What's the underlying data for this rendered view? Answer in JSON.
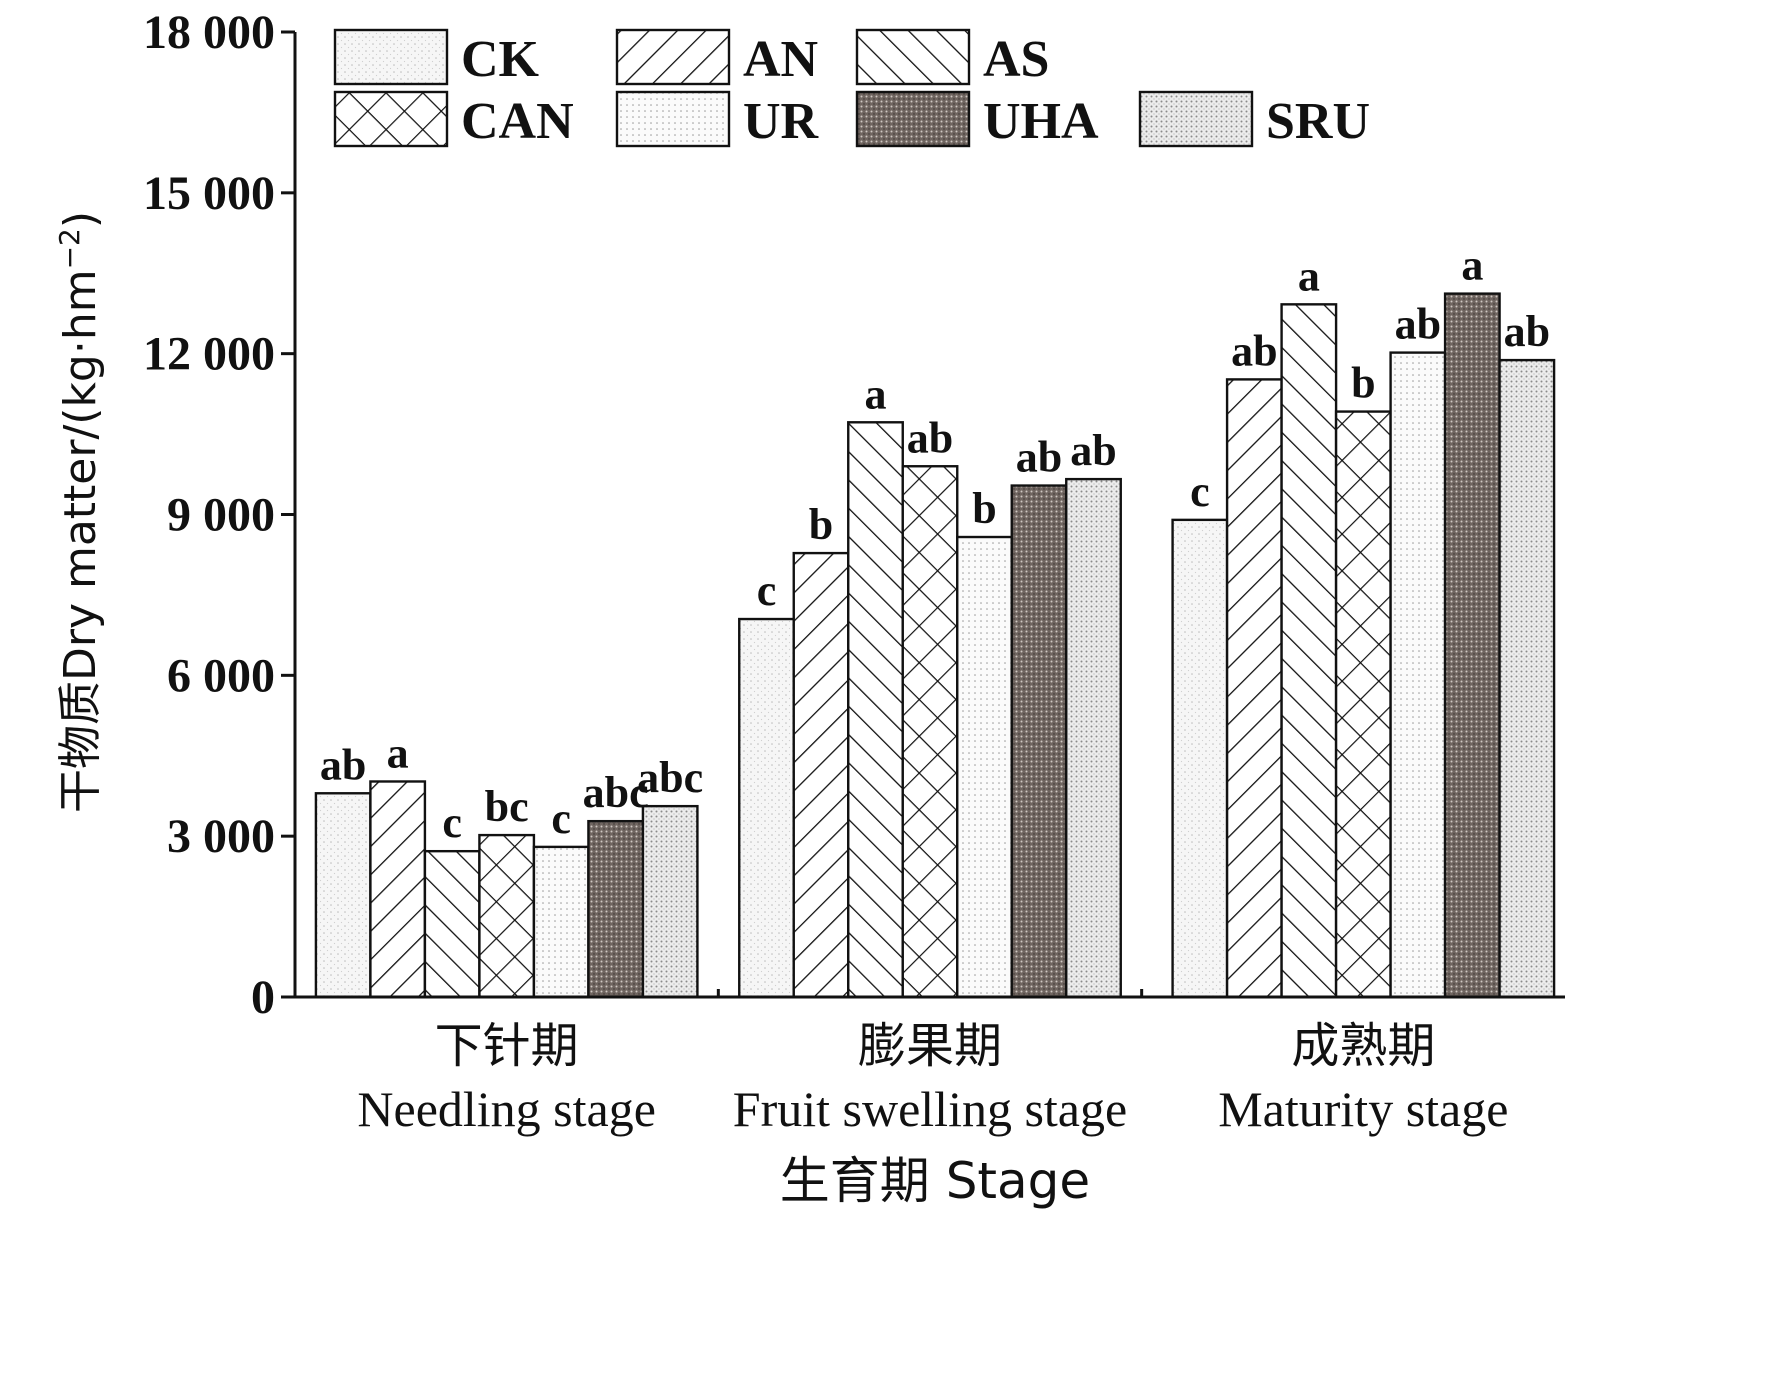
{
  "chart_data": {
    "type": "bar",
    "title": "",
    "ylabel": "干物质Dry matter/(kg·hm⁻²)",
    "ylabel_parts": {
      "main": "干物质Dry matter/(kg·hm",
      "sup": "−2",
      "close": ")"
    },
    "xlabel": "生育期 Stage",
    "ylim": [
      0,
      18000
    ],
    "yticks": [
      0,
      3000,
      6000,
      9000,
      12000,
      15000,
      18000
    ],
    "ytick_labels": [
      "0",
      "3 000",
      "6 000",
      "9 000",
      "12 000",
      "15 000",
      "18 000"
    ],
    "grid": false,
    "legend_position": "top",
    "categories": [
      {
        "zh": "下针期",
        "en": "Needling stage"
      },
      {
        "zh": "膨果期",
        "en": "Fruit swelling stage"
      },
      {
        "zh": "成熟期",
        "en": "Maturity stage"
      }
    ],
    "series": [
      {
        "name": "CK",
        "pattern": "dots-light",
        "values": [
          3800,
          7050,
          8900
        ],
        "letters": [
          "ab",
          "c",
          "c"
        ]
      },
      {
        "name": "AN",
        "pattern": "diag-right",
        "values": [
          4020,
          8280,
          11520
        ],
        "letters": [
          "a",
          "b",
          "ab"
        ]
      },
      {
        "name": "AS",
        "pattern": "diag-left",
        "values": [
          2720,
          10720,
          12920
        ],
        "letters": [
          "c",
          "a",
          "a"
        ]
      },
      {
        "name": "CAN",
        "pattern": "crosshatch",
        "values": [
          3020,
          9900,
          10920
        ],
        "letters": [
          "bc",
          "ab",
          "b"
        ]
      },
      {
        "name": "UR",
        "pattern": "dots-fine",
        "values": [
          2800,
          8580,
          12020
        ],
        "letters": [
          "c",
          "b",
          "ab"
        ]
      },
      {
        "name": "UHA",
        "pattern": "dark-dots",
        "values": [
          3280,
          9540,
          13120
        ],
        "letters": [
          "abc",
          "ab",
          "a"
        ]
      },
      {
        "name": "SRU",
        "pattern": "dots-medium",
        "values": [
          3560,
          9660,
          11880
        ],
        "letters": [
          "abc",
          "ab",
          "ab"
        ]
      }
    ]
  }
}
